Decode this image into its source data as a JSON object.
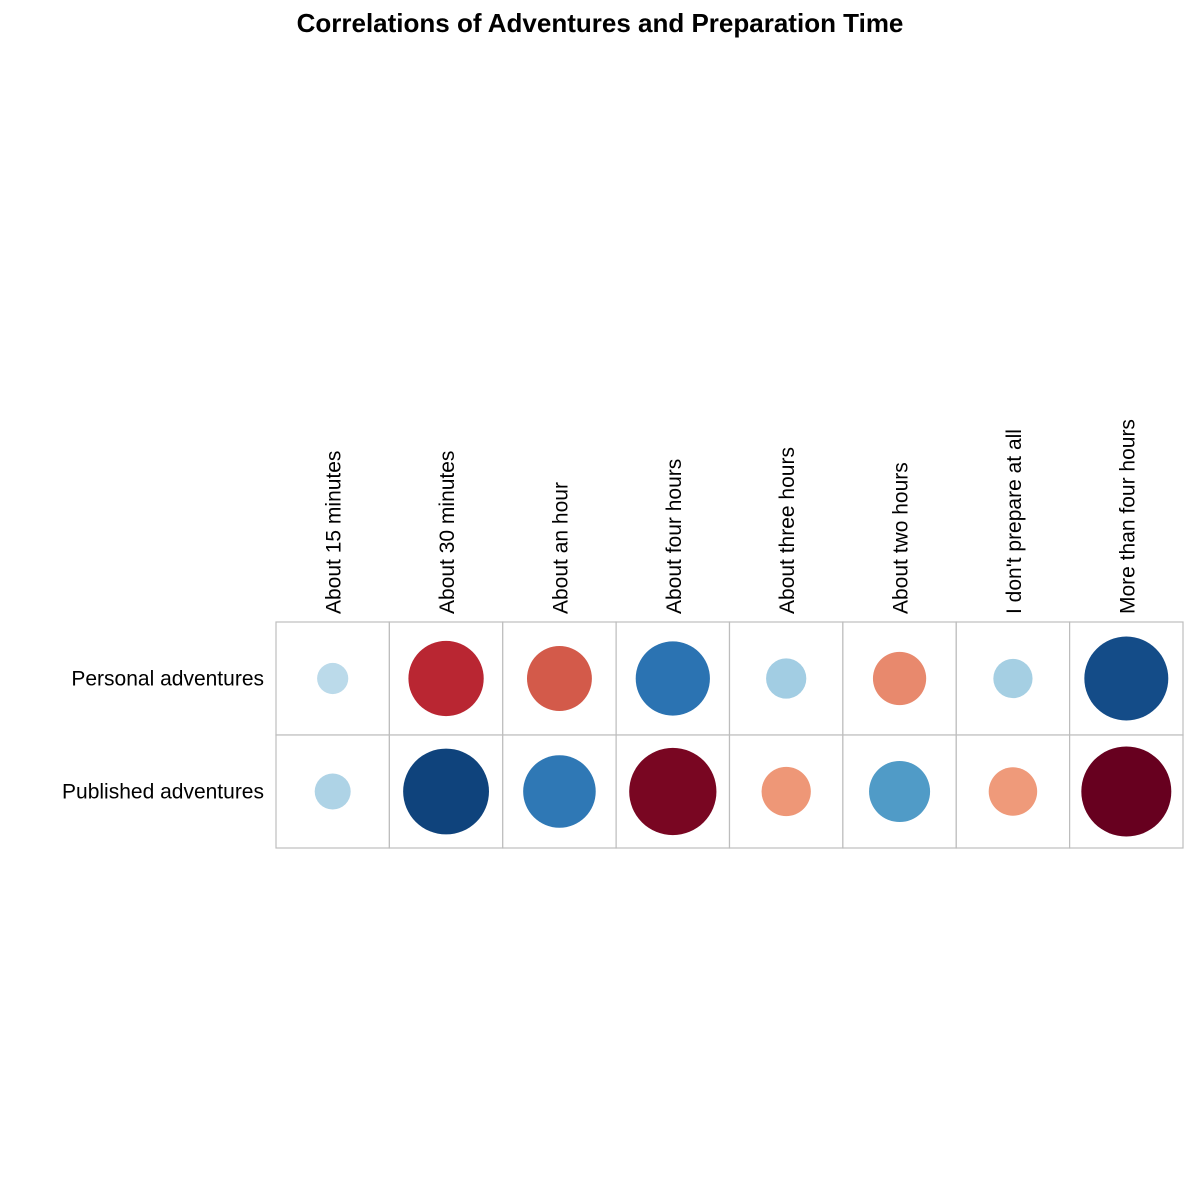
{
  "chart_data": {
    "type": "heatmap",
    "subtype": "correlation-circles",
    "title": "Correlations of Adventures and Preparation Time",
    "columns": [
      "About 15 minutes",
      "About 30 minutes",
      "About an hour",
      "About four hours",
      "About three hours",
      "About two hours",
      "I don't prepare at all",
      "More than four hours"
    ],
    "rows": [
      "Personal adventures",
      "Published adventures"
    ],
    "values": [
      [
        0.12,
        -0.7,
        -0.52,
        0.68,
        0.2,
        -0.35,
        0.19,
        0.87
      ],
      [
        0.16,
        0.91,
        0.65,
        -0.94,
        -0.3,
        0.46,
        -0.29,
        -1.0
      ]
    ],
    "value_range": [
      -1,
      1
    ],
    "colors": {
      "strong_positive": "#053061",
      "positive": "#4393c3",
      "neutral": "#f7f7f7",
      "negative": "#f4a582",
      "strong_negative": "#67001f",
      "grid": "#bdbdbd"
    },
    "grid": true,
    "legend": "none"
  }
}
